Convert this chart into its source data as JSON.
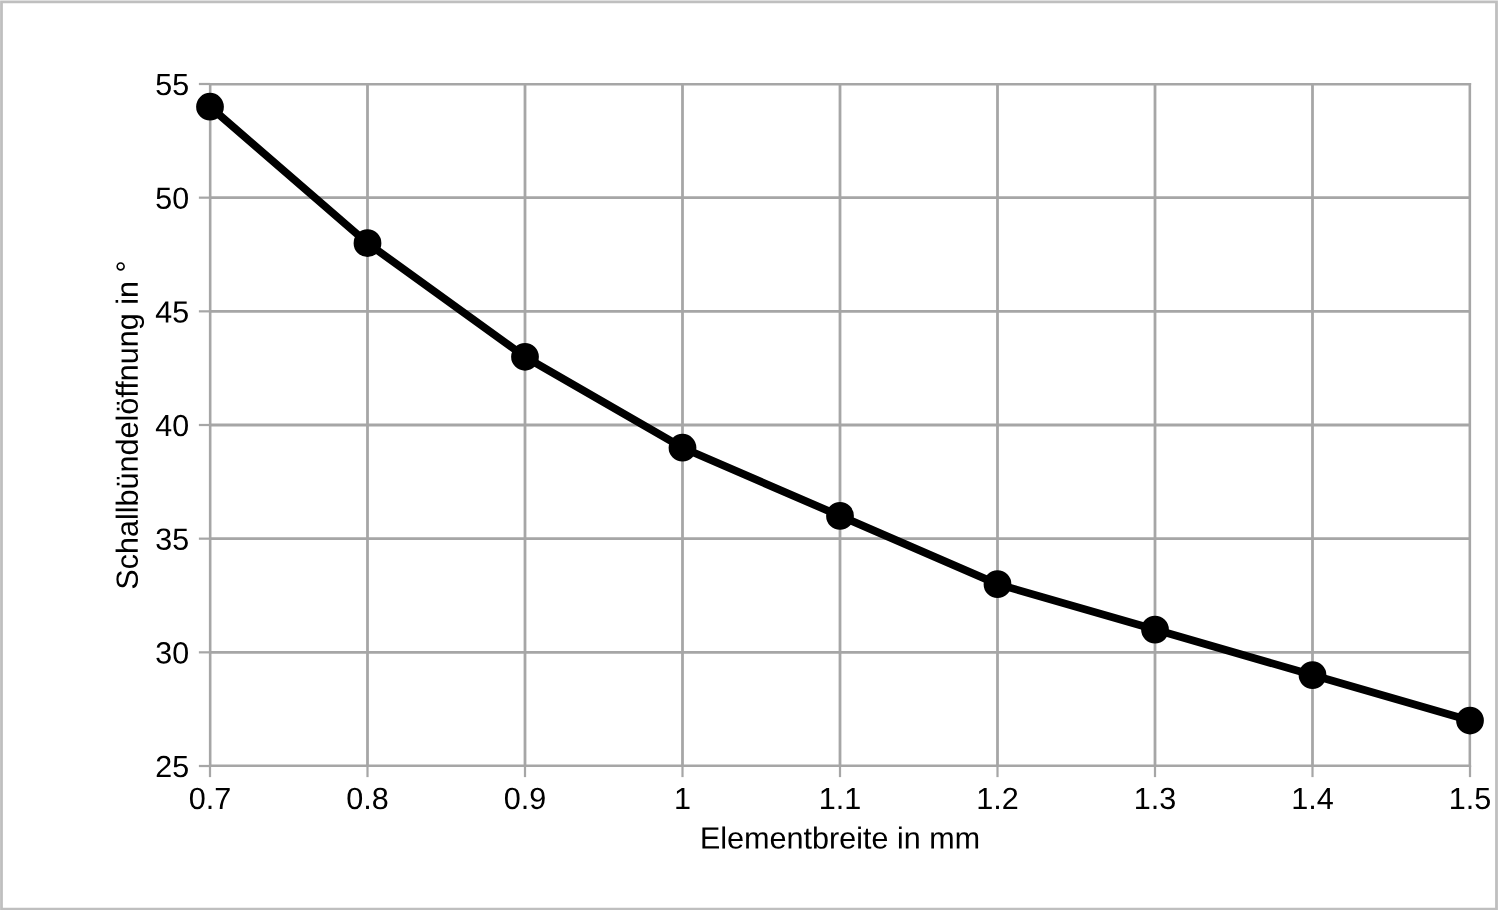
{
  "chart_data": {
    "type": "line",
    "xlabel": "Elementbreite in mm",
    "ylabel": "Schallbündelöffnung in °",
    "x": [
      0.7,
      0.8,
      0.9,
      1,
      1.1,
      1.2,
      1.3,
      1.4,
      1.5
    ],
    "series": [
      {
        "color": "#000000",
        "values": [
          54,
          48,
          43,
          39,
          36,
          33,
          31,
          29,
          27
        ]
      }
    ],
    "xlim": [
      0.7,
      1.5
    ],
    "xticks": [
      0.7,
      0.8,
      0.9,
      1,
      1.1,
      1.2,
      1.3,
      1.4,
      1.5
    ],
    "ylim": [
      25,
      55
    ],
    "yticks": [
      25,
      30,
      35,
      40,
      45,
      50,
      55
    ],
    "grid": true,
    "marker": "circle",
    "line_style": "solid"
  }
}
